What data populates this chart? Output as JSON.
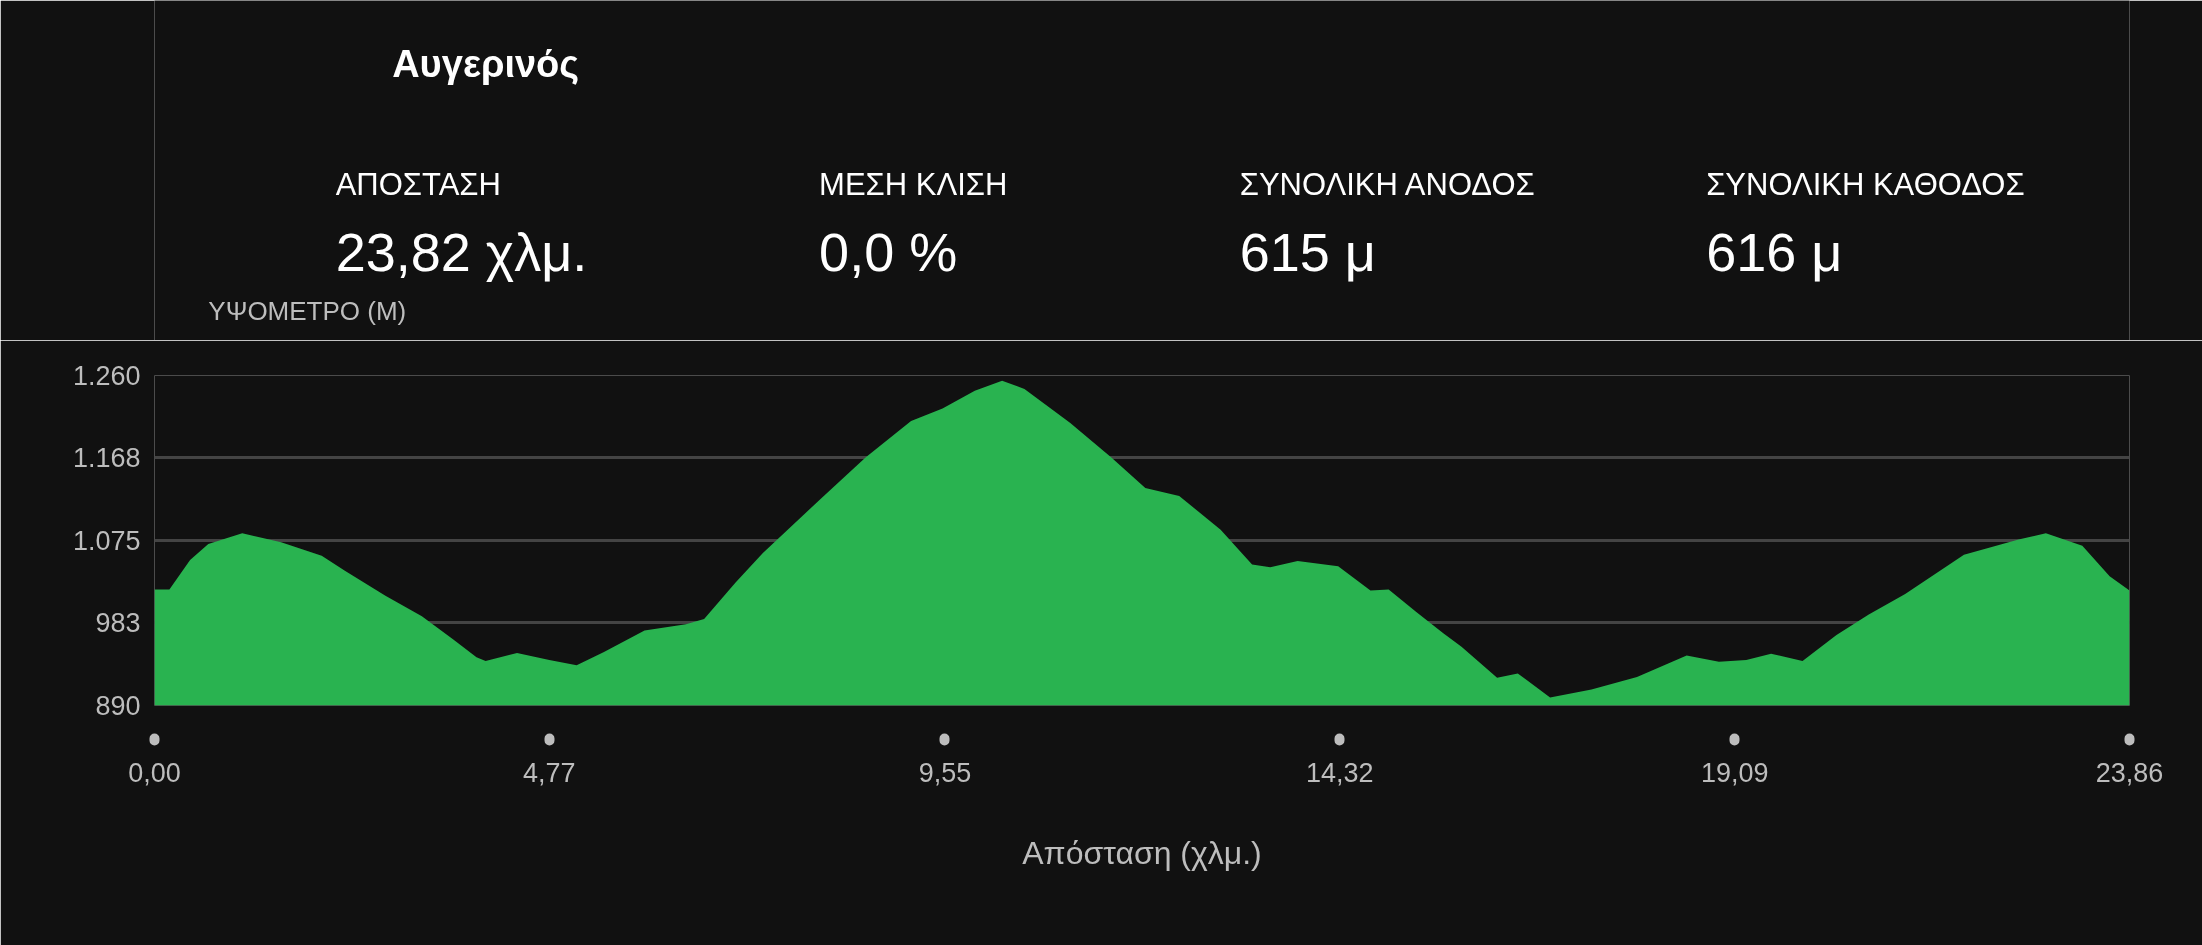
{
  "chart_data": {
    "type": "area",
    "title": "Αυγερινός",
    "xlabel": "Απόσταση (χλμ.)",
    "ylabel": "ΥΨΟΜΕΤΡΟ (Μ)",
    "annotations": [
      "ΑΠΟΣΤΑΣΗ",
      "23,82 χλμ.",
      "ΜΕΣΗ ΚΛΙΣΗ",
      "0,0 %",
      "ΣΥΝΟΛΙΚΗ ΑΝΟΔΟΣ",
      "615 μ",
      "ΣΥΝΟΛΙΚΗ ΚΑΘΟΔΟΣ",
      "616 μ"
    ],
    "x": [
      0,
      0.18,
      0.43,
      0.65,
      1.06,
      1.53,
      2.02,
      2.3,
      2.79,
      3.23,
      3.61,
      3.89,
      4.0,
      4.38,
      4.77,
      5.1,
      5.43,
      5.92,
      6.42,
      6.64,
      7.02,
      7.35,
      8.04,
      8.59,
      9.14,
      9.52,
      9.91,
      10.24,
      10.51,
      11.06,
      11.56,
      11.97,
      12.38,
      12.88,
      13.26,
      13.48,
      13.81,
      14.3,
      14.69,
      14.91,
      15.24,
      15.57,
      15.79,
      16.22,
      16.47,
      16.86,
      17.36,
      17.91,
      18.51,
      18.9,
      19.23,
      19.53,
      19.91,
      20.32,
      20.71,
      21.15,
      21.86,
      22.52,
      22.85,
      23.29,
      23.62,
      23.86
    ],
    "values": [
      1020,
      1020,
      1053,
      1071,
      1083,
      1073,
      1058,
      1041,
      1013,
      990,
      964,
      944,
      940,
      949,
      941,
      935,
      950,
      974,
      981,
      987,
      1028,
      1061,
      1121,
      1168,
      1209,
      1223,
      1243,
      1254,
      1245,
      1207,
      1168,
      1134,
      1125,
      1087,
      1048,
      1045,
      1052,
      1046,
      1019,
      1020,
      995,
      971,
      956,
      921,
      926,
      899,
      908,
      922,
      946,
      939,
      941,
      948,
      940,
      969,
      992,
      1015,
      1059,
      1076,
      1083,
      1069,
      1035,
      1019
    ],
    "color": "#29b350",
    "xlim": [
      0,
      23.86
    ],
    "ylim": [
      890,
      1260
    ],
    "xticks": [
      {
        "value": 0,
        "label": "0,00"
      },
      {
        "value": 4.77,
        "label": "4,77"
      },
      {
        "value": 9.55,
        "label": "9,55"
      },
      {
        "value": 14.32,
        "label": "14,32"
      },
      {
        "value": 19.09,
        "label": "19,09"
      },
      {
        "value": 23.86,
        "label": "23,86"
      }
    ],
    "yticks": [
      {
        "value": 890,
        "label": "890"
      },
      {
        "value": 983,
        "label": "983"
      },
      {
        "value": 1075,
        "label": "1.075"
      },
      {
        "value": 1168,
        "label": "1.168"
      },
      {
        "value": 1260,
        "label": "1.260"
      }
    ],
    "grid": "y"
  }
}
